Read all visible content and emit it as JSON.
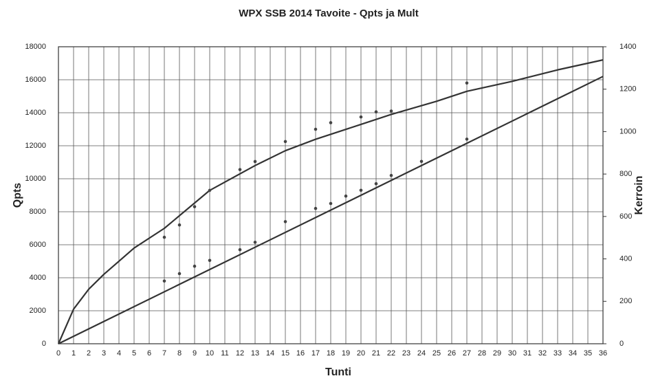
{
  "chart_data": {
    "type": "line",
    "title": "WPX SSB 2014 Tavoite - Qpts ja Mult",
    "x_label": "Tunti",
    "y_label": "Qpts",
    "y2_label": "Kerroin",
    "xlim": [
      0,
      36
    ],
    "xticks": [
      0,
      1,
      2,
      3,
      4,
      5,
      6,
      7,
      8,
      9,
      10,
      11,
      12,
      13,
      14,
      15,
      16,
      17,
      18,
      19,
      20,
      21,
      22,
      23,
      24,
      25,
      26,
      27,
      28,
      29,
      30,
      31,
      32,
      33,
      34,
      35,
      36
    ],
    "ylim": [
      0,
      18000
    ],
    "yticks": [
      0,
      2000,
      4000,
      6000,
      8000,
      10000,
      12000,
      14000,
      16000,
      18000
    ],
    "y2lim": [
      0,
      1400
    ],
    "y2ticks": [
      0,
      200,
      400,
      600,
      800,
      1000,
      1200,
      1400
    ],
    "grid": true,
    "series": [
      {
        "color": "#333333",
        "x": [
          0,
          36
        ],
        "values": [
          0,
          16200
        ]
      },
      {
        "color": "#333333",
        "axis": "y2",
        "x": [
          0,
          1,
          2,
          3,
          5,
          7,
          10,
          13,
          15,
          17,
          20,
          22,
          25,
          27,
          30,
          33,
          36
        ],
        "values": [
          0,
          163,
          257,
          327,
          451,
          544,
          723,
          840,
          910,
          964,
          1034,
          1081,
          1143,
          1190,
          1237,
          1291,
          1338
        ]
      },
      {
        "color": "#444444",
        "style": "points",
        "axis": "y2",
        "x": [
          7,
          8,
          9,
          10,
          12,
          13,
          15,
          17,
          18,
          20,
          21,
          22,
          27
        ],
        "values": [
          502,
          560,
          646,
          723,
          821,
          859,
          953,
          1011,
          1042,
          1069,
          1093,
          1097,
          1229
        ]
      },
      {
        "color": "#444444",
        "style": "points",
        "x": [
          7,
          8,
          9,
          10,
          12,
          13,
          15,
          17,
          18,
          19,
          20,
          21,
          22,
          24,
          27
        ],
        "values": [
          3800,
          4250,
          4700,
          5050,
          5700,
          6150,
          7400,
          8200,
          8500,
          8950,
          9300,
          9700,
          10200,
          11050,
          12400
        ]
      }
    ]
  }
}
